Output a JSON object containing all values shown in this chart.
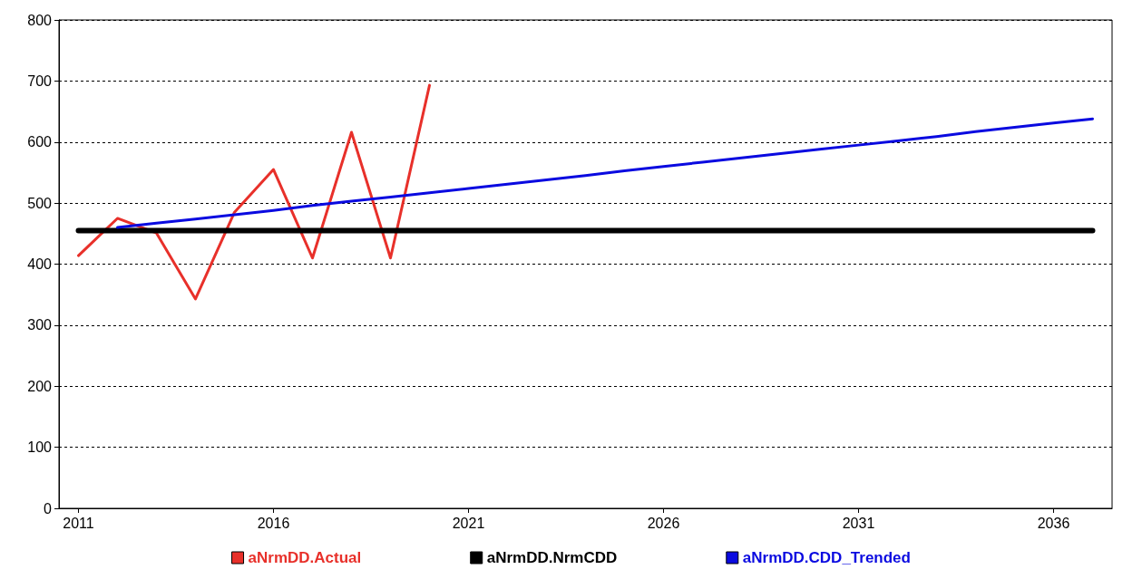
{
  "chart_data": {
    "type": "line",
    "categories": [
      "2011",
      null,
      null,
      null,
      null,
      "2016",
      null,
      null,
      null,
      null,
      "2021",
      null,
      null,
      null,
      null,
      "2026",
      null,
      null,
      null,
      null,
      "2031",
      null,
      null,
      null,
      null,
      "2036",
      null
    ],
    "series": [
      {
        "name": "aNrmDD.Actual",
        "color": "#e8302a",
        "values": [
          414,
          475,
          451,
          343,
          485,
          555,
          410,
          616,
          410,
          693,
          null,
          null,
          null,
          null,
          null,
          null,
          null,
          null,
          null,
          null,
          null,
          null,
          null,
          null,
          null,
          null,
          null
        ]
      },
      {
        "name": "aNrmDD.NrmCDD",
        "color": "#000000",
        "values": [
          455,
          455,
          455,
          455,
          455,
          455,
          455,
          455,
          455,
          455,
          455,
          455,
          455,
          455,
          455,
          455,
          455,
          455,
          455,
          455,
          455,
          455,
          455,
          455,
          455,
          455,
          455
        ]
      },
      {
        "name": "aNrmDD.CDD_Trended",
        "color": "#0a0ae0",
        "values": [
          null,
          460,
          467,
          474,
          481,
          488,
          496,
          503,
          510,
          517,
          524,
          531,
          538,
          545,
          553,
          560,
          567,
          574,
          581,
          588,
          595,
          602,
          609,
          617,
          624,
          631,
          638
        ]
      }
    ],
    "ylim": [
      0,
      800
    ],
    "yticks": [
      0,
      100,
      200,
      300,
      400,
      500,
      600,
      700,
      800
    ],
    "grid": "y",
    "legend": "bottom",
    "marker": "none",
    "line_style": "solid"
  }
}
